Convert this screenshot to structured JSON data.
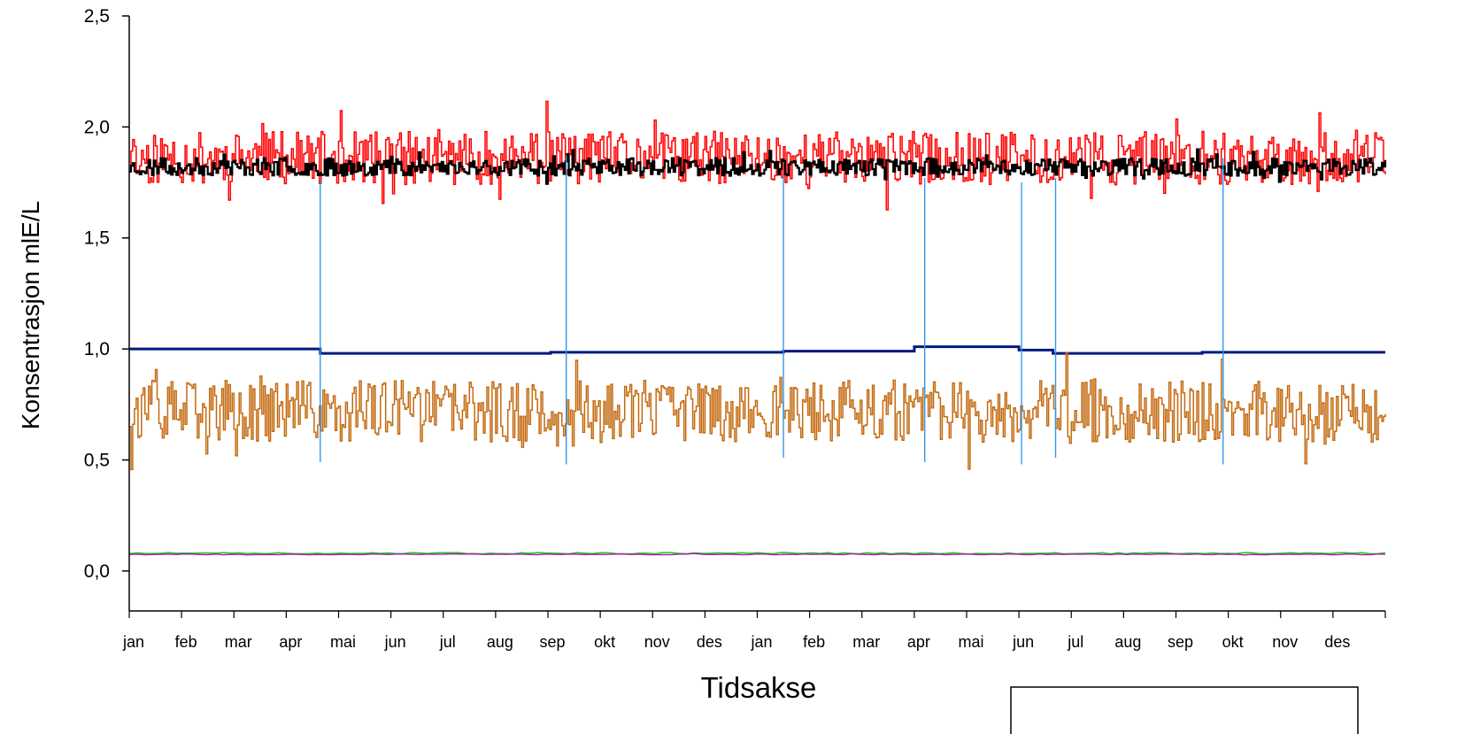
{
  "chart_data": {
    "type": "line",
    "xlabel": "Tidsakse",
    "ylabel": "Konsentrasjon mlE/L",
    "ylim": [
      -0.18,
      2.5
    ],
    "yticks": [
      "2,5",
      "2,0",
      "1,5",
      "1,0",
      "0,5",
      "0,0"
    ],
    "ytick_values": [
      2.5,
      2.0,
      1.5,
      1.0,
      0.5,
      0.0
    ],
    "x_months": [
      "jan",
      "feb",
      "mar",
      "apr",
      "mai",
      "jun",
      "jul",
      "aug",
      "sep",
      "okt",
      "nov",
      "des",
      "jan",
      "feb",
      "mar",
      "apr",
      "mai",
      "jun",
      "jul",
      "aug",
      "sep",
      "okt",
      "nov",
      "des"
    ],
    "xlim_months": [
      0,
      24
    ],
    "grid": false,
    "legend": "bottom-right",
    "series": [
      {
        "color": "#ff0000",
        "style": "step",
        "level": 1.86,
        "spread": 0.12,
        "seed": 11
      },
      {
        "color": "#000000",
        "style": "step",
        "level": 1.82,
        "spread": 0.04,
        "seed": 23
      },
      {
        "color": "#001a80",
        "style": "step",
        "points": [
          [
            0,
            1.0
          ],
          [
            3.65,
            0.98
          ],
          [
            8.05,
            0.985
          ],
          [
            12.5,
            0.99
          ],
          [
            15.0,
            1.01
          ],
          [
            17.0,
            0.995
          ],
          [
            17.65,
            0.98
          ],
          [
            20.5,
            0.985
          ],
          [
            24,
            0.985
          ]
        ]
      },
      {
        "color": "#c46a10",
        "style": "step",
        "level": 0.72,
        "spread": 0.14,
        "seed": 37
      },
      {
        "color": "#22cc22",
        "style": "line",
        "level": 0.08,
        "spread": 0.003,
        "seed": 51
      },
      {
        "color": "#aa22aa",
        "style": "line",
        "level": 0.075,
        "spread": 0.002,
        "seed": 67
      }
    ],
    "event_lines": {
      "color": "#3399ee",
      "segments": [
        {
          "x": 3.65,
          "y": [
            0.49,
            1.76
          ]
        },
        {
          "x": 8.35,
          "y": [
            0.48,
            1.87
          ]
        },
        {
          "x": 12.5,
          "y": [
            0.51,
            1.78
          ]
        },
        {
          "x": 15.2,
          "y": [
            0.49,
            1.77
          ]
        },
        {
          "x": 17.05,
          "y": [
            0.48,
            1.75
          ]
        },
        {
          "x": 17.7,
          "y": [
            0.51,
            1.77
          ]
        },
        {
          "x": 20.9,
          "y": [
            0.48,
            1.86
          ]
        }
      ]
    }
  }
}
